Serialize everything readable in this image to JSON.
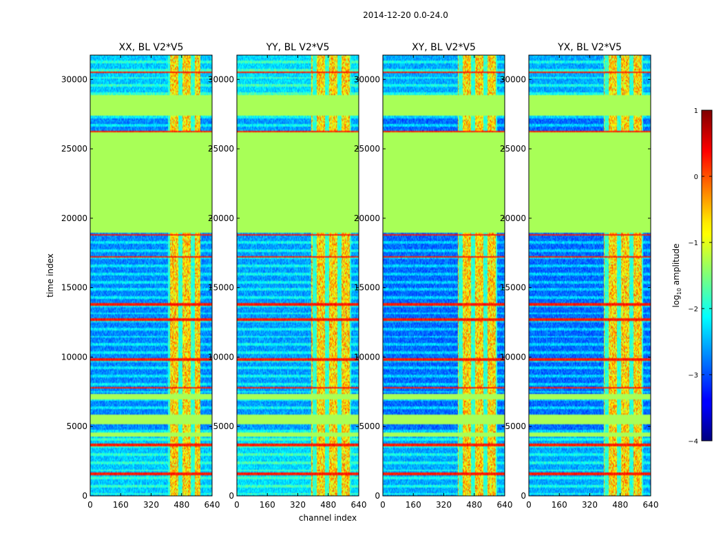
{
  "figure": {
    "suptitle": "2014-12-20 0.0-24.0",
    "ylabel": "time index",
    "xlabel": "channel index"
  },
  "chart_data": {
    "type": "heatmap",
    "x_range": [
      0,
      640
    ],
    "y_range": [
      0,
      31750
    ],
    "x_ticks": [
      0,
      160,
      320,
      480,
      640
    ],
    "y_ticks": [
      0,
      5000,
      10000,
      15000,
      20000,
      25000,
      30000
    ],
    "x_tick_labels": [
      "0",
      "160",
      "320",
      "480",
      "640"
    ],
    "y_tick_labels": [
      "0",
      "5000",
      "10000",
      "15000",
      "20000",
      "25000",
      "30000"
    ],
    "panels": [
      {
        "title": "XX, BL V2*V5",
        "rfi_band": [
          410,
          580
        ],
        "background": -2.7
      },
      {
        "title": "YY, BL V2*V5",
        "rfi_band": [
          390,
          600
        ],
        "background": -2.6
      },
      {
        "title": "XY, BL V2*V5",
        "rfi_band": [
          395,
          600
        ],
        "background": -2.85
      },
      {
        "title": "YX, BL V2*V5",
        "rfi_band": [
          395,
          600
        ],
        "background": -2.85
      }
    ],
    "flagged_value": -1.3,
    "flagged_time_ranges": [
      [
        19000,
        26200
      ],
      [
        27400,
        28900
      ],
      [
        6900,
        7300
      ],
      [
        5200,
        5900
      ],
      [
        4300,
        4600
      ]
    ],
    "strong_lines": [
      1600,
      3700,
      7800,
      9800,
      12700,
      13800,
      17200,
      18800,
      26200,
      30500
    ],
    "colorbar": {
      "label": "log$_{10}$ amplitude",
      "label_main": "log",
      "label_sub": "10",
      "label_tail": " amplitude",
      "range": [
        -4,
        1
      ],
      "ticks": [
        1,
        0,
        -1,
        -2,
        -3,
        -4
      ],
      "tick_labels": [
        "1",
        "0",
        "−1",
        "−2",
        "−3",
        "−4"
      ],
      "colormap": "jet"
    }
  }
}
